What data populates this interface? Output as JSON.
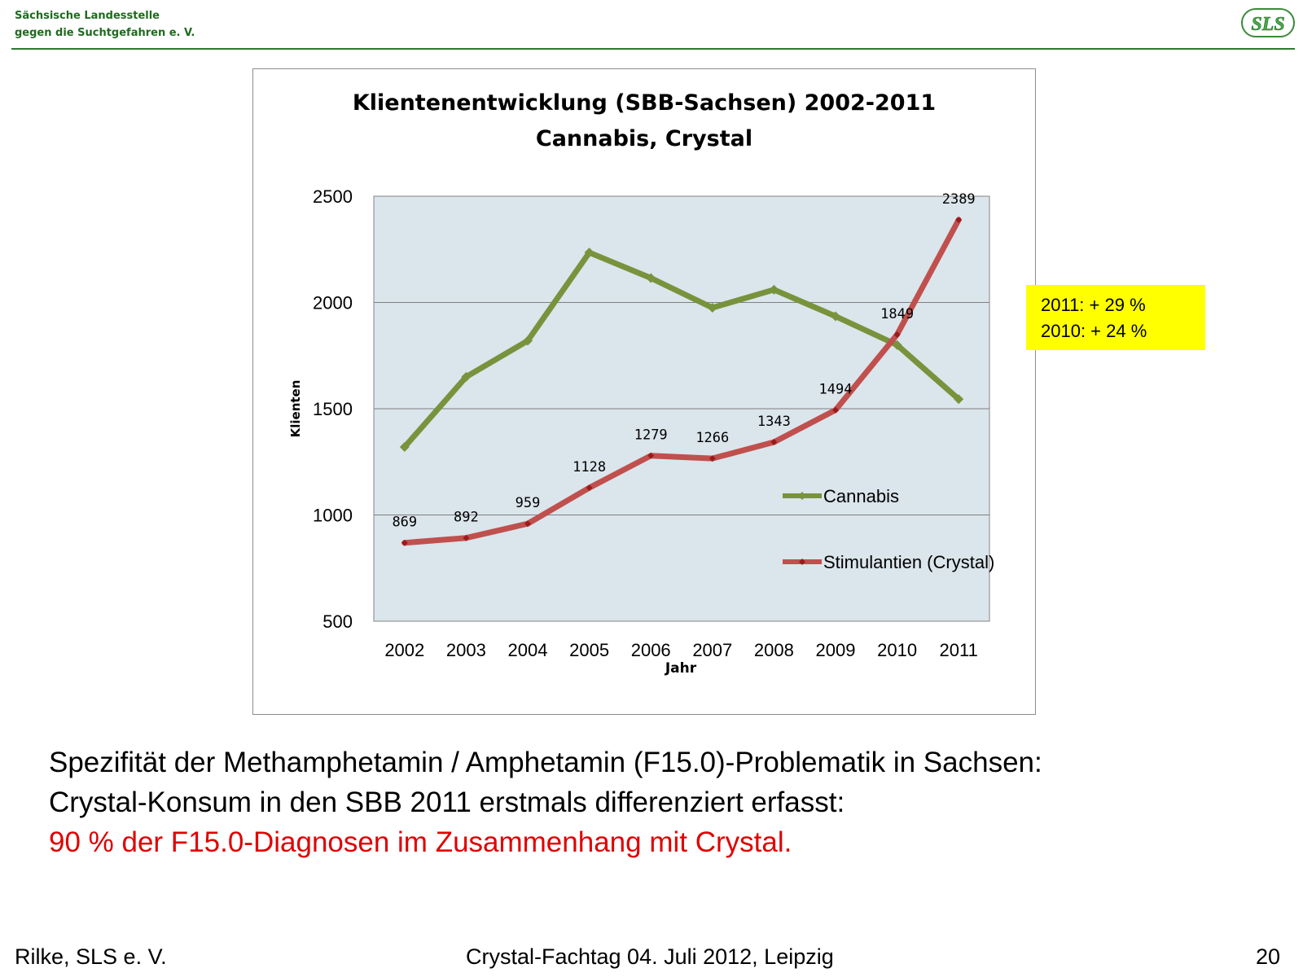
{
  "header": {
    "org_line1": "Sächsische Landesstelle",
    "org_line2": "gegen die Suchtgefahren e. V.",
    "logo_text": "SLS"
  },
  "chart_data": {
    "type": "line",
    "title": "Klientenentwicklung (SBB-Sachsen) 2002-2011",
    "subtitle": "Cannabis, Crystal",
    "xlabel": "Jahr",
    "ylabel": "Klienten",
    "categories": [
      "2002",
      "2003",
      "2004",
      "2005",
      "2006",
      "2007",
      "2008",
      "2009",
      "2010",
      "2011"
    ],
    "ylim": [
      500,
      2500
    ],
    "yticks": [
      "500",
      "1000",
      "1500",
      "2000",
      "2500"
    ],
    "grid": true,
    "legend_position": "right",
    "series": [
      {
        "name": "Cannabis",
        "color": "#77933c",
        "marker": "diamond",
        "values": [
          1320,
          1650,
          1820,
          2235,
          2115,
          1975,
          2060,
          1935,
          1800,
          1545
        ],
        "data_labels": null
      },
      {
        "name": "Stimulantien (Crystal)",
        "color": "#c0504d",
        "marker_color": "#9b1b1b",
        "marker": "diamond",
        "values": [
          869,
          892,
          959,
          1128,
          1279,
          1266,
          1343,
          1494,
          1849,
          2389
        ],
        "data_labels": [
          "869",
          "892",
          "959",
          "1128",
          "1279",
          "1266",
          "1343",
          "1494",
          "1849",
          "2389"
        ]
      }
    ]
  },
  "callout": {
    "line1": "2011: + 29 %",
    "line2": "2010: + 24 %",
    "background": "#ffff00"
  },
  "body": {
    "line1": "Spezifität der Methamphetamin / Amphetamin (F15.0)-Problematik in Sachsen:",
    "line2": "Crystal-Konsum in den SBB 2011 erstmals differenziert erfasst:",
    "line3": "90 % der F15.0-Diagnosen im Zusammenhang mit Crystal.",
    "accent_color": "#e00000"
  },
  "footer": {
    "author": "Rilke, SLS e. V.",
    "event": "Crystal-Fachtag 04. Juli 2012, Leipzig",
    "page_number": "20"
  }
}
